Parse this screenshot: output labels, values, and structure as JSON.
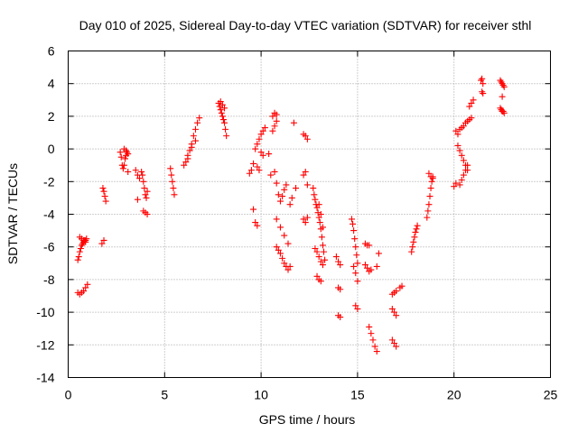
{
  "chart_data": {
    "type": "scatter",
    "title": "Day 010 of 2025, Sidereal Day-to-day VTEC variation (SDTVAR) for receiver sthl",
    "xlabel": "GPS time / hours",
    "ylabel": "SDTVAR / TECUs",
    "xlim": [
      0,
      25
    ],
    "ylim": [
      -14,
      6
    ],
    "xticks": [
      "0",
      "5",
      "10",
      "15",
      "20",
      "25"
    ],
    "yticks": [
      "6",
      "4",
      "2",
      "0",
      "-2",
      "-4",
      "-6",
      "-8",
      "-10",
      "-12",
      "-14"
    ],
    "grid": true,
    "marker": "+",
    "color": "#ff0000",
    "series": [
      {
        "name": "SDTVAR",
        "x": [
          0.5,
          0.55,
          0.6,
          0.65,
          0.7,
          0.75,
          0.8,
          0.85,
          0.9,
          0.95,
          0.5,
          0.6,
          0.7,
          0.8,
          0.9,
          1.0,
          0.6,
          0.7,
          0.8,
          0.9,
          1.8,
          1.85,
          1.9,
          1.95,
          1.75,
          1.85,
          2.7,
          2.75,
          2.8,
          2.85,
          2.9,
          2.95,
          3.0,
          3.05,
          3.1,
          2.9,
          3.0,
          3.1,
          3.5,
          3.6,
          3.7,
          3.8,
          3.85,
          3.9,
          3.95,
          4.0,
          4.05,
          4.1,
          3.9,
          4.0,
          4.1,
          3.6,
          5.3,
          5.35,
          5.4,
          5.45,
          5.5,
          6.0,
          6.1,
          6.2,
          6.3,
          6.4,
          6.5,
          6.6,
          6.7,
          6.8,
          6.2,
          6.4,
          6.6,
          7.8,
          7.85,
          7.9,
          7.95,
          8.0,
          8.05,
          8.1,
          8.15,
          8.2,
          7.9,
          8.0,
          8.1,
          9.4,
          9.5,
          9.6,
          9.7,
          9.8,
          9.9,
          10.0,
          10.1,
          10.2,
          9.8,
          9.9,
          10.0,
          10.1,
          9.6,
          9.7,
          9.8,
          10.4,
          10.5,
          10.6,
          10.7,
          10.8,
          10.6,
          10.7,
          10.8,
          10.7,
          10.8,
          10.9,
          11.0,
          11.1,
          11.2,
          11.3,
          10.8,
          11.0,
          11.2,
          11.4,
          10.8,
          10.9,
          11.0,
          11.1,
          11.2,
          11.3,
          11.4,
          11.5,
          11.7,
          11.8,
          11.5,
          11.6,
          12.2,
          12.3,
          12.4,
          12.2,
          12.3,
          12.4,
          12.2,
          12.3,
          12.4,
          12.7,
          12.75,
          12.8,
          12.85,
          12.9,
          12.95,
          13.0,
          13.05,
          13.1,
          13.15,
          13.2,
          13.25,
          13.3,
          12.8,
          12.9,
          13.0,
          13.1,
          13.2,
          12.9,
          13.0,
          13.1,
          13.0,
          13.1,
          13.2,
          13.9,
          14.0,
          14.1,
          14.0,
          14.1,
          14.0,
          14.1,
          14.7,
          14.75,
          14.8,
          14.85,
          14.9,
          14.95,
          15.0,
          14.8,
          14.9,
          15.0,
          14.9,
          15.0,
          15.4,
          15.5,
          15.6,
          15.4,
          15.5,
          15.6,
          15.7,
          15.6,
          15.7,
          15.8,
          15.9,
          16.0,
          16.0,
          16.1,
          16.8,
          16.9,
          17.0,
          16.8,
          16.9,
          17.0,
          16.8,
          16.9,
          17.0,
          17.2,
          17.3,
          17.8,
          17.85,
          17.9,
          17.95,
          18.0,
          18.05,
          18.1,
          18.6,
          18.65,
          18.7,
          18.75,
          18.8,
          18.85,
          18.9,
          18.7,
          18.8,
          18.9,
          20.0,
          20.1,
          20.1,
          20.2,
          20.3,
          20.4,
          20.5,
          20.6,
          20.7,
          20.8,
          20.9,
          20.2,
          20.3,
          20.4,
          20.5,
          20.6,
          20.7,
          20.3,
          20.4,
          20.5,
          20.6,
          20.7,
          20.8,
          20.9,
          21.0,
          21.4,
          21.45,
          21.5,
          21.45,
          21.5,
          22.4,
          22.45,
          22.5,
          22.55,
          22.6,
          22.4,
          22.45,
          22.5,
          22.55,
          22.6,
          22.5
        ],
        "y": [
          -6.8,
          -6.6,
          -6.3,
          -6.1,
          -5.9,
          -5.8,
          -5.7,
          -5.6,
          -5.6,
          -5.5,
          -8.8,
          -8.9,
          -8.8,
          -8.7,
          -8.5,
          -8.3,
          -5.4,
          -5.5,
          -5.6,
          -5.7,
          -2.4,
          -2.6,
          -2.9,
          -3.2,
          -5.8,
          -5.6,
          -0.2,
          -0.5,
          -1.0,
          -1.2,
          -1.0,
          -0.6,
          -0.4,
          -0.2,
          -1.4,
          0.0,
          -0.1,
          -0.3,
          -1.3,
          -1.6,
          -1.8,
          -1.4,
          -1.6,
          -2.0,
          -2.4,
          -2.8,
          -3.0,
          -2.6,
          -3.8,
          -3.9,
          -4.0,
          -3.1,
          -1.2,
          -1.6,
          -2.0,
          -2.4,
          -2.8,
          -1.0,
          -0.8,
          -0.4,
          -0.1,
          0.3,
          0.8,
          1.2,
          1.6,
          1.9,
          -0.6,
          0.1,
          0.5,
          2.8,
          2.6,
          2.4,
          2.2,
          2.0,
          1.8,
          1.6,
          1.2,
          0.8,
          2.9,
          2.7,
          2.5,
          -1.5,
          -1.3,
          -0.9,
          0.0,
          0.3,
          0.6,
          0.9,
          1.1,
          1.3,
          -1.1,
          -1.3,
          -0.2,
          -0.4,
          -3.7,
          -4.5,
          -4.7,
          -0.3,
          -1.6,
          1.1,
          1.4,
          1.7,
          2.0,
          2.2,
          2.1,
          -1.4,
          -2.1,
          -2.8,
          -3.2,
          -2.9,
          -2.5,
          -2.2,
          -4.3,
          -4.8,
          -5.3,
          -5.8,
          -6.0,
          -6.2,
          -6.4,
          -6.7,
          -7.0,
          -7.2,
          -7.4,
          -7.2,
          1.6,
          -2.4,
          -3.4,
          -3.0,
          0.9,
          0.8,
          0.6,
          -1.6,
          -1.4,
          -2.2,
          -4.3,
          -4.5,
          -4.2,
          -2.4,
          -2.8,
          -3.1,
          -3.4,
          -3.6,
          -3.9,
          -4.2,
          -4.5,
          -4.9,
          -5.4,
          -5.9,
          -6.3,
          -6.8,
          -6.1,
          -6.3,
          -6.6,
          -6.9,
          -7.1,
          -7.8,
          -8.0,
          -8.1,
          -3.4,
          -4.0,
          -4.8,
          -6.6,
          -6.9,
          -7.1,
          -8.5,
          -8.6,
          -10.2,
          -10.3,
          -4.3,
          -4.6,
          -5.0,
          -5.5,
          -6.0,
          -6.5,
          -7.0,
          -7.2,
          -7.6,
          -8.1,
          -9.6,
          -9.8,
          -5.8,
          -5.9,
          -5.9,
          -7.1,
          -7.3,
          -7.5,
          -7.4,
          -10.9,
          -11.3,
          -11.7,
          -12.1,
          -12.4,
          -7.2,
          -6.4,
          -8.9,
          -8.8,
          -8.7,
          -9.8,
          -10.0,
          -10.2,
          -11.7,
          -11.9,
          -12.1,
          -8.5,
          -8.4,
          -6.3,
          -6.0,
          -5.7,
          -5.4,
          -5.1,
          -4.9,
          -4.7,
          -4.2,
          -3.8,
          -3.4,
          -2.9,
          -2.4,
          -2.0,
          -1.7,
          -1.5,
          -1.7,
          -1.8,
          -2.3,
          -2.1,
          1.1,
          0.9,
          1.2,
          1.3,
          1.4,
          1.6,
          1.7,
          1.8,
          1.9,
          0.2,
          -0.1,
          -0.4,
          -0.7,
          -1.0,
          -1.3,
          -2.2,
          -1.9,
          -1.6,
          -1.3,
          -1.0,
          2.6,
          2.8,
          3.0,
          4.2,
          4.3,
          4.0,
          3.5,
          3.4,
          4.2,
          4.1,
          4.0,
          3.9,
          3.8,
          2.5,
          2.4,
          2.3,
          2.3,
          2.2,
          3.2
        ]
      }
    ]
  }
}
